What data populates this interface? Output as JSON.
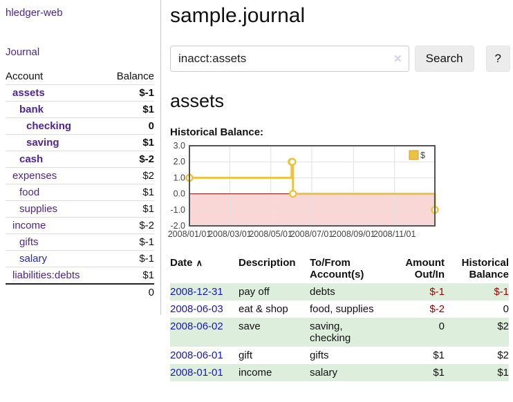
{
  "sidebar": {
    "app_title": "hledger-web",
    "journal_label": "Journal",
    "account_header": "Account",
    "balance_header": "Balance",
    "accounts": [
      {
        "name": "assets",
        "depth": 1,
        "bold": true,
        "balance": "$-1",
        "balance_class": "neg-strong"
      },
      {
        "name": "bank",
        "depth": 2,
        "bold": true,
        "balance": "$1",
        "balance_class": ""
      },
      {
        "name": "checking",
        "depth": 3,
        "bold": true,
        "balance": "0",
        "balance_class": ""
      },
      {
        "name": "saving",
        "depth": 3,
        "bold": true,
        "balance": "$1",
        "balance_class": ""
      },
      {
        "name": "cash",
        "depth": 2,
        "bold": true,
        "balance": "$-2",
        "balance_class": "neg-strong"
      },
      {
        "name": "expenses",
        "depth": 1,
        "bold": false,
        "balance": "$2",
        "balance_class": ""
      },
      {
        "name": "food",
        "depth": 2,
        "bold": false,
        "balance": "$1",
        "balance_class": ""
      },
      {
        "name": "supplies",
        "depth": 2,
        "bold": false,
        "balance": "$1",
        "balance_class": ""
      },
      {
        "name": "income",
        "depth": 1,
        "bold": false,
        "balance": "$-2",
        "balance_class": "neg-soft"
      },
      {
        "name": "gifts",
        "depth": 2,
        "bold": false,
        "balance": "$-1",
        "balance_class": "neg-soft"
      },
      {
        "name": "salary",
        "depth": 2,
        "bold": false,
        "balance": "$-1",
        "balance_class": "neg-soft",
        "blue": true
      },
      {
        "name": "liabilities:debts",
        "depth": 1,
        "bold": false,
        "balance": "$1",
        "balance_class": ""
      }
    ],
    "total": "0"
  },
  "main": {
    "title": "sample.journal",
    "account_heading": "assets",
    "chart_label": "Historical Balance:"
  },
  "search": {
    "value": "inacct:assets",
    "button_label": "Search",
    "help_label": "?",
    "clear_icon": "✕"
  },
  "chart_data": {
    "type": "line",
    "step": true,
    "title": "Historical Balance:",
    "legend": "$",
    "legend_position": "top-right",
    "series": [
      {
        "name": "$",
        "color": "#edc240",
        "points": [
          [
            "2008-01-01",
            1
          ],
          [
            "2008-06-01",
            2
          ],
          [
            "2008-06-02",
            2
          ],
          [
            "2008-06-03",
            0
          ],
          [
            "2008-12-31",
            -1
          ]
        ]
      }
    ],
    "x_range": [
      "2008-01-01",
      "2008-12-31"
    ],
    "x_ticks": [
      "2008/01/01",
      "2008/03/01",
      "2008/05/01",
      "2008/07/01",
      "2008/09/01",
      "2008/11/01"
    ],
    "y_ticks": [
      3.0,
      2.0,
      1.0,
      0.0,
      -1.0,
      -2.0
    ],
    "ylim": [
      -2,
      3
    ],
    "grid": true,
    "negative_fill": "#fad7d7",
    "zero_line_color": "#8b0000",
    "border_color": "#545454",
    "grid_color": "#e0e0e0"
  },
  "transactions": {
    "headers": [
      "Date",
      "Description",
      "To/From\nAccount(s)",
      "Amount\nOut/In",
      "Historical\nBalance"
    ],
    "sort_icon": "∧",
    "rows": [
      {
        "date": "2008-12-31",
        "description": "pay off",
        "accounts": "debts",
        "amount": "$-1",
        "amount_class": "neg",
        "balance": "$-1",
        "balance_class": "neg",
        "shaded": true
      },
      {
        "date": "2008-06-03",
        "description": "eat & shop",
        "accounts": "food, supplies",
        "amount": "$-2",
        "amount_class": "neg",
        "balance": "0",
        "balance_class": "",
        "shaded": false
      },
      {
        "date": "2008-06-02",
        "description": "save",
        "accounts": "saving,\nchecking",
        "amount": "0",
        "amount_class": "",
        "balance": "$2",
        "balance_class": "",
        "shaded": true
      },
      {
        "date": "2008-06-01",
        "description": "gift",
        "accounts": "gifts",
        "amount": "$1",
        "amount_class": "",
        "balance": "$2",
        "balance_class": "",
        "shaded": false
      },
      {
        "date": "2008-01-01",
        "description": "income",
        "accounts": "salary",
        "amount": "$1",
        "amount_class": "",
        "balance": "$1",
        "balance_class": "",
        "shaded": true
      }
    ]
  },
  "colors": {
    "link_purple": "#4d2599",
    "link_blue": "#1616c8",
    "negative": "#a40000",
    "negative_soft": "#b26a6a",
    "row_stripe_green": "#ddeedd",
    "chart_line_gold": "#edc240",
    "chart_negative_pink": "#fad7d7",
    "button_gray": "#ececec"
  }
}
